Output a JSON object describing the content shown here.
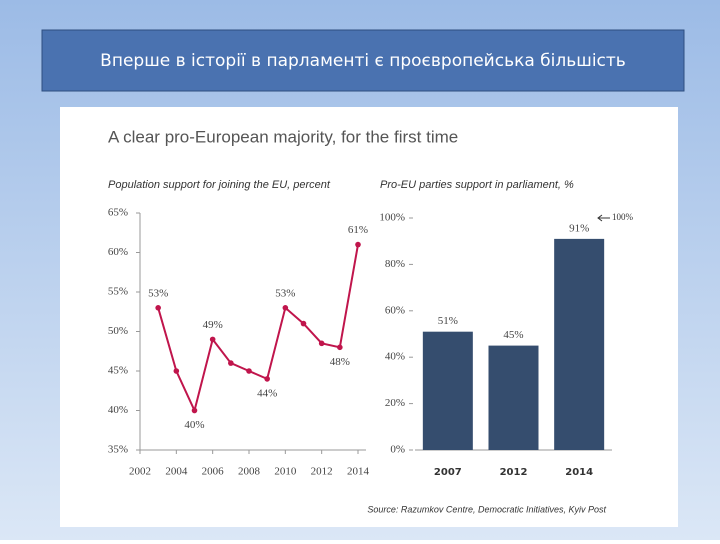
{
  "slide_title": "Вперше в історії в парламенті є проєвропейська більшість",
  "figure_title": "A clear pro-European majority, for the first time",
  "source": "Source: Razumkov Centre, Democratic Initiatives, Kyiv Post",
  "chart_data": [
    {
      "type": "line",
      "title": "Population support for joining the EU, percent",
      "x": [
        2003,
        2004,
        2005,
        2006,
        2007,
        2008,
        2009,
        2010,
        2011,
        2012,
        2013,
        2014
      ],
      "series": [
        {
          "color": "#c0154c",
          "values": [
            53,
            45,
            40,
            49,
            46,
            45,
            44,
            53,
            51,
            48.5,
            48,
            61
          ],
          "value_labels": [
            "53%",
            null,
            "40%",
            "49%",
            null,
            null,
            "44%",
            "53%",
            null,
            null,
            "48%",
            "61%"
          ]
        }
      ],
      "xlim": [
        2002,
        2014
      ],
      "xticks": [
        2002,
        2004,
        2006,
        2008,
        2010,
        2012,
        2014
      ],
      "ylim": [
        35,
        65
      ],
      "yticks": [
        {
          "value": 35,
          "label": "35%"
        },
        {
          "value": 40,
          "label": "40%"
        },
        {
          "value": 45,
          "label": "45%"
        },
        {
          "value": 50,
          "label": "50%"
        },
        {
          "value": 55,
          "label": "55%"
        },
        {
          "value": 60,
          "label": "60%"
        },
        {
          "value": 65,
          "label": "65%"
        }
      ]
    },
    {
      "type": "bar",
      "title": "Pro-EU parties support in parliament, %",
      "categories": [
        "2007",
        "2012",
        "2014"
      ],
      "values": [
        51,
        45,
        91
      ],
      "value_labels": [
        "51%",
        "45%",
        "91%"
      ],
      "color": "#354d6e",
      "ylim": [
        0,
        100
      ],
      "yticks": [
        {
          "value": 0,
          "label": "0%"
        },
        {
          "value": 20,
          "label": "20%"
        },
        {
          "value": 40,
          "label": "40%"
        },
        {
          "value": 60,
          "label": "60%"
        },
        {
          "value": 80,
          "label": "80%"
        },
        {
          "value": 100,
          "label": "100%"
        }
      ],
      "annotation": "100%"
    }
  ]
}
